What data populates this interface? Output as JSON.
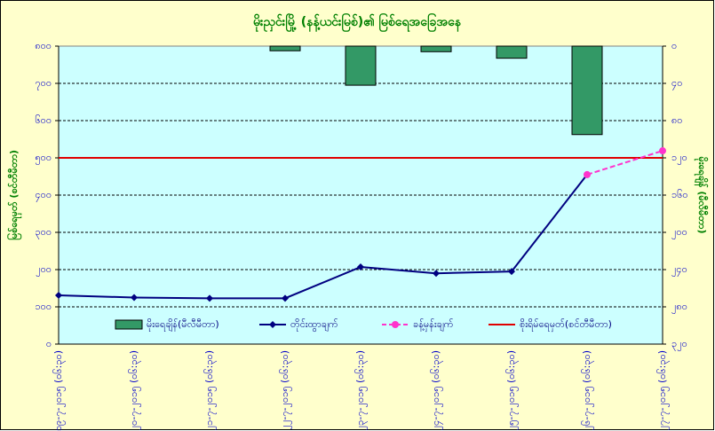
{
  "chart_data": {
    "type": "combo",
    "title": "မိုးညှင်းမြို့ (နန့်ယင်းမြစ်)၏ မြစ်ရေအခြေအနေ",
    "ylabel": "မြစ်ရေမှတ် (စင်တီမီတာ)",
    "y2label": "မိုးရေချိန် (မီလီမီတာ)",
    "categories": [
      "၁၉-၇-၂၀၁၅ (၀၆:၃၀)",
      "၂၀-၇-၂၀၁၅ (၀၆:၃၀)",
      "၂၁-၇-၂၀၁၅ (၀၆:၃၀)",
      "၂၂-၇-၂၀၁၅ (၀၆:၃၀)",
      "၂၃-၇-၂၀၁၅ (၀၆:၃၀)",
      "၂၄-၇-၂၀၁၅ (၀၆:၃၀)",
      "၂၅-၇-၂၀၁၅ (၀၆:၃၀)",
      "၂၆-၇-၂၀၁၅ (၀၆:၃၀)",
      "၂၇-၇-၂၀၁၅ (၀၆:၃၀)"
    ],
    "series": [
      {
        "name": "မိုးရေချိန်(မီလီမီတာ)",
        "type": "bar",
        "axis": "y2",
        "color": "#339966",
        "values": [
          null,
          null,
          null,
          5,
          42,
          6,
          13,
          95,
          null
        ]
      },
      {
        "name": "တိုင်းထွာချက်",
        "type": "line",
        "color": "#000080",
        "values": [
          131,
          125,
          123,
          123,
          207,
          190,
          195,
          455,
          null
        ]
      },
      {
        "name": "ခန့်မှန်းချက်",
        "type": "dashed",
        "color": "#ff33cc",
        "values": [
          null,
          null,
          null,
          null,
          null,
          null,
          null,
          455,
          519
        ]
      }
    ],
    "danger_level": {
      "name": "စိုးရိမ်ရေမှတ်(စင်တီမီတာ)",
      "value": 500,
      "color": "#e00000"
    },
    "ylim": [
      0,
      800
    ],
    "yticks": [
      {
        "value": 0,
        "label": "၀"
      },
      {
        "value": 100,
        "label": "၁၀၀"
      },
      {
        "value": 200,
        "label": "၂၀၀"
      },
      {
        "value": 300,
        "label": "၃၀၀"
      },
      {
        "value": 400,
        "label": "၄၀၀"
      },
      {
        "value": 500,
        "label": "၅၀၀"
      },
      {
        "value": 600,
        "label": "၆၀၀"
      },
      {
        "value": 700,
        "label": "၇၀၀"
      },
      {
        "value": 800,
        "label": "၈၀၀"
      }
    ],
    "y2lim": [
      320,
      0
    ],
    "y2ticks": [
      {
        "value": 0,
        "label": "၀"
      },
      {
        "value": 40,
        "label": "၄၀"
      },
      {
        "value": 80,
        "label": "၈၀"
      },
      {
        "value": 120,
        "label": "၁၂၀"
      },
      {
        "value": 160,
        "label": "၁၆၀"
      },
      {
        "value": 200,
        "label": "၂၀၀"
      },
      {
        "value": 240,
        "label": "၂၄၀"
      },
      {
        "value": 280,
        "label": "၂၈၀"
      },
      {
        "value": 320,
        "label": "၃၂၀"
      }
    ],
    "grid": true
  }
}
